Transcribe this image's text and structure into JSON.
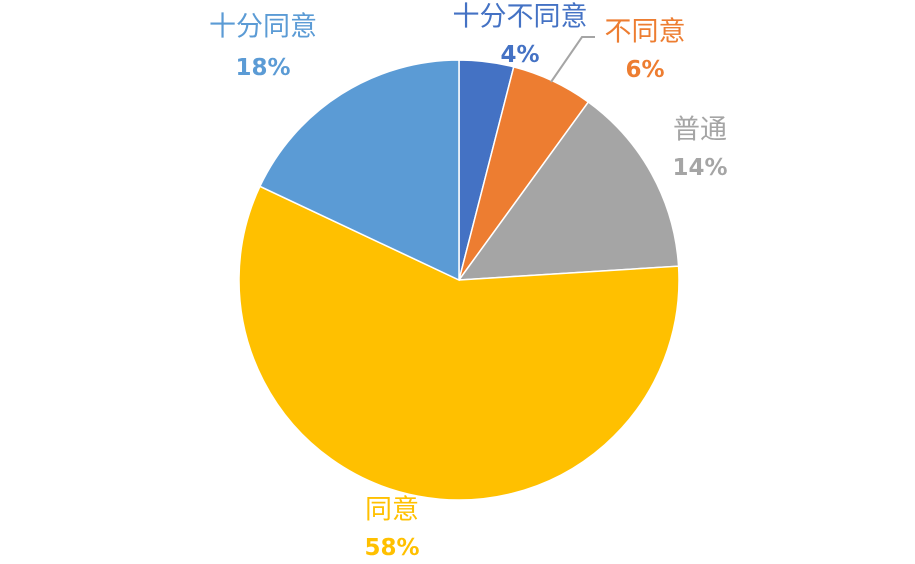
{
  "chart_data": {
    "type": "pie",
    "title": "",
    "start_angle": "top",
    "direction": "clockwise",
    "slices": [
      {
        "label": "十分不同意",
        "value": 4,
        "display": "4%",
        "color": "#4472C4"
      },
      {
        "label": "不同意",
        "value": 6,
        "display": "6%",
        "color": "#ED7D31"
      },
      {
        "label": "普通",
        "value": 14,
        "display": "14%",
        "color": "#A5A5A5"
      },
      {
        "label": "同意",
        "value": 58,
        "display": "58%",
        "color": "#FFC000"
      },
      {
        "label": "十分同意",
        "value": 18,
        "display": "18%",
        "color": "#5B9BD5"
      }
    ],
    "legend": "none",
    "data_labels": "category and percentage"
  }
}
